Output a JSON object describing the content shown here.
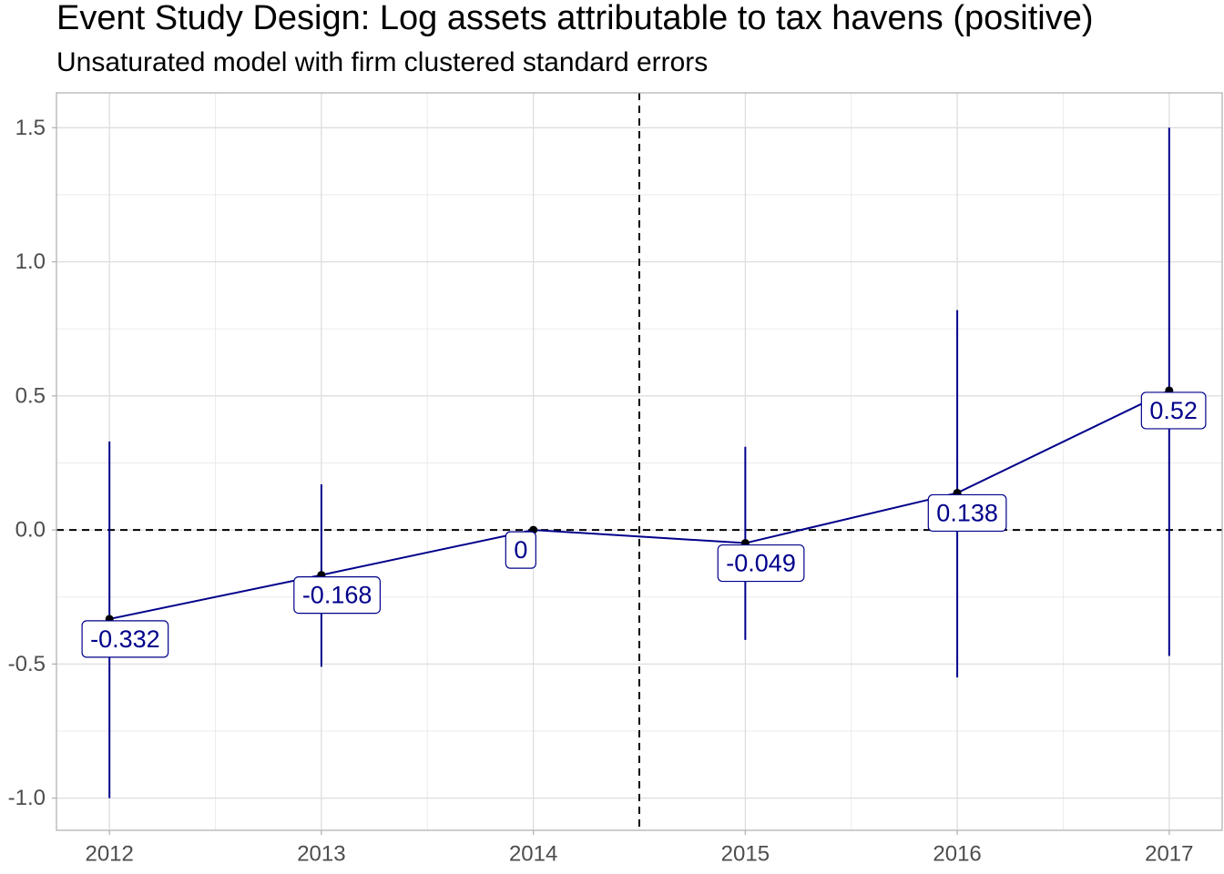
{
  "chart_data": {
    "type": "line",
    "title": "Event Study Design: Log assets attributable to tax havens (positive)",
    "subtitle": "Unsaturated model with firm clustered standard errors",
    "xlabel": "",
    "ylabel": "",
    "x": [
      2012,
      2013,
      2014,
      2015,
      2016,
      2017
    ],
    "xtick_labels": [
      "2012",
      "2013",
      "2014",
      "2015",
      "2016",
      "2017"
    ],
    "xlim": [
      2011.75,
      2017.25
    ],
    "ylim": [
      -1.12,
      1.63
    ],
    "yticks": [
      -1.0,
      -0.5,
      0.0,
      0.5,
      1.0,
      1.5
    ],
    "ytick_labels": [
      "-1.0",
      "-0.5",
      "0.0",
      "0.5",
      "1.0",
      "1.5"
    ],
    "series": [
      {
        "values": [
          -0.332,
          -0.168,
          0,
          -0.049,
          0.138,
          0.52
        ],
        "labels": [
          "-0.332",
          "-0.168",
          "0",
          "-0.049",
          "0.138",
          "0.52"
        ],
        "ci_lower": [
          -1.0,
          -0.51,
          0,
          -0.41,
          -0.55,
          -0.47
        ],
        "ci_upper": [
          0.33,
          0.17,
          0,
          0.31,
          0.82,
          1.5
        ],
        "color": "#00008b"
      }
    ],
    "reference_lines": {
      "horizontal_y": 0,
      "vertical_x": 2014.5,
      "style": "dashed"
    },
    "grid": true,
    "legend": "none"
  }
}
